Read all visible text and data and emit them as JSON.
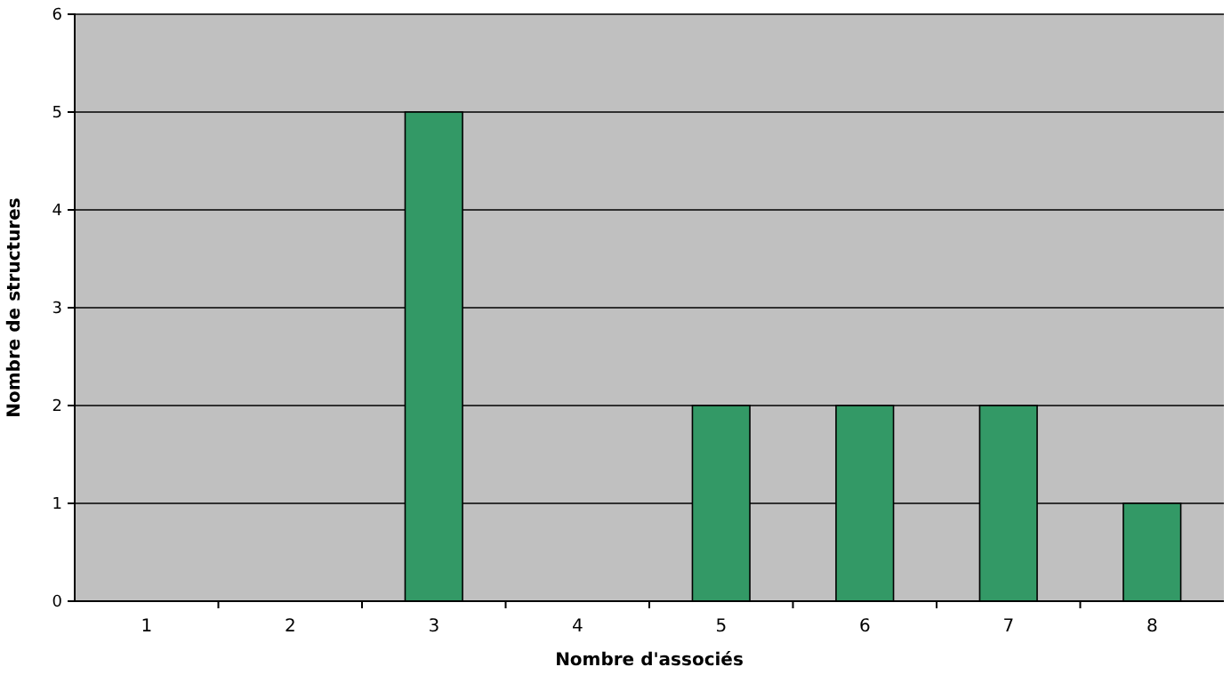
{
  "chart_data": {
    "type": "bar",
    "xlabel": "Nombre d'associés",
    "ylabel": "Nombre de structures",
    "categories": [
      "1",
      "2",
      "3",
      "4",
      "5",
      "6",
      "7",
      "8"
    ],
    "values": [
      0,
      0,
      5,
      0,
      2,
      2,
      2,
      1
    ],
    "color": "#339966",
    "ylim": [
      0,
      6
    ],
    "yticks": [
      0,
      1,
      2,
      3,
      4,
      5,
      6
    ],
    "grid": "y"
  }
}
